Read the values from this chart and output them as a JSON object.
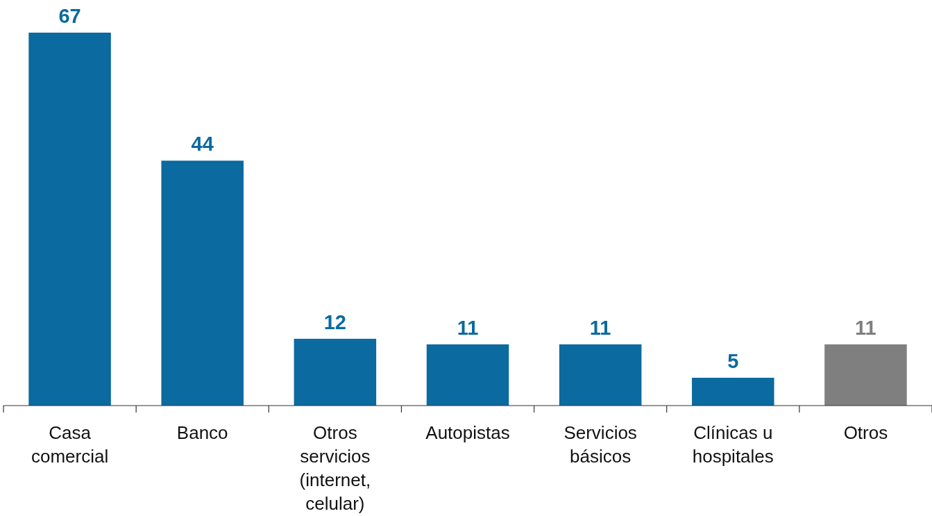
{
  "chart_data": {
    "type": "bar",
    "categories": [
      "Casa comercial",
      "Banco",
      "Otros servicios (internet, celular)",
      "Autopistas",
      "Servicios básicos",
      "Clínicas u hospitales",
      "Otros"
    ],
    "values": [
      67,
      44,
      12,
      11,
      11,
      5,
      11
    ],
    "colors": [
      "#0b6a9f",
      "#0b6a9f",
      "#0b6a9f",
      "#0b6a9f",
      "#0b6a9f",
      "#0b6a9f",
      "#7f7f7f"
    ],
    "data_labels": true
  }
}
